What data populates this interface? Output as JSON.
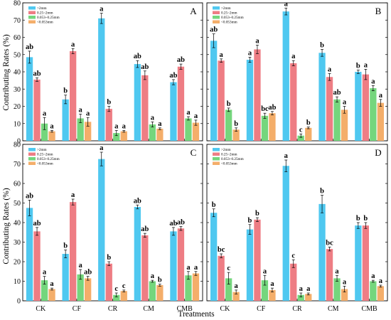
{
  "figure": {
    "ylabel": "Contributing Rates (%)",
    "xlabel": "Treatments",
    "colors": [
      "#4fc8f0",
      "#ee7d84",
      "#75d67d",
      "#f4ae6a"
    ]
  },
  "chart_data": [
    {
      "panel": "A",
      "type": "bar",
      "categories": [
        "CK",
        "CF",
        "CR",
        "CM",
        "CMB"
      ],
      "ylim": [
        0,
        80
      ],
      "yticks": [
        0,
        10,
        20,
        30,
        40,
        50,
        60,
        70,
        80
      ],
      "legend": {
        "position": "top-left"
      },
      "series": [
        {
          "name": ">2mm",
          "values": [
            48.5,
            24,
            71,
            44.5,
            34
          ],
          "errors": [
            3.5,
            2.5,
            3,
            2,
            1.5
          ],
          "labels": [
            "ab",
            "b",
            "a",
            "ab",
            "ab"
          ]
        },
        {
          "name": "0.25~2mm",
          "values": [
            35.5,
            52,
            18.5,
            38,
            43
          ],
          "errors": [
            1,
            1.5,
            1.5,
            2.5,
            1.5
          ],
          "labels": [
            "ab",
            "a",
            "b",
            "ab",
            "ab"
          ]
        },
        {
          "name": "0.053~0.25mm",
          "values": [
            10,
            13,
            4.5,
            9.5,
            13
          ],
          "errors": [
            3.5,
            2.5,
            1.5,
            1.5,
            1
          ],
          "labels": [
            "a",
            "a",
            "a",
            "a",
            "a"
          ]
        },
        {
          "name": "<0.053mm",
          "values": [
            5.5,
            11,
            5.5,
            7,
            10.5
          ],
          "errors": [
            0.5,
            2.5,
            0.5,
            0.5,
            1.5
          ],
          "labels": [
            "a",
            "a",
            "a",
            "a",
            "a"
          ]
        }
      ]
    },
    {
      "panel": "B",
      "type": "bar",
      "categories": [
        "CK",
        "CF",
        "CR",
        "CM",
        "CMB"
      ],
      "ylim": [
        0,
        80
      ],
      "yticks": [
        0,
        10,
        20,
        30,
        40,
        50,
        60,
        70,
        80
      ],
      "legend": {
        "position": "top-left"
      },
      "series": [
        {
          "name": ">2mm",
          "values": [
            58,
            47,
            75,
            51,
            40
          ],
          "errors": [
            4,
            1.5,
            2,
            2,
            1
          ],
          "labels": [
            "ab",
            "a",
            "a",
            "b",
            "b"
          ]
        },
        {
          "name": "0.25~2mm",
          "values": [
            46.5,
            53,
            45,
            37,
            38.5
          ],
          "errors": [
            1,
            2.5,
            1.5,
            2,
            3
          ],
          "labels": [
            "a",
            "a",
            "a",
            "a",
            "a"
          ]
        },
        {
          "name": "0.053~0.25mm",
          "values": [
            18,
            14.5,
            3,
            24,
            30.5
          ],
          "errors": [
            1,
            1.5,
            1,
            1.5,
            1.5
          ],
          "labels": [
            "b",
            "bc",
            "c",
            "ab",
            "a"
          ]
        },
        {
          "name": "<0.053mm",
          "values": [
            6.5,
            16,
            7.5,
            18,
            22
          ],
          "errors": [
            1,
            1,
            0.5,
            2,
            2
          ],
          "labels": [
            "b",
            "ab",
            "b",
            "a",
            "a"
          ]
        }
      ]
    },
    {
      "panel": "C",
      "type": "bar",
      "categories": [
        "CK",
        "CF",
        "CR",
        "CM",
        "CMB"
      ],
      "ylim": [
        0,
        80
      ],
      "yticks": [
        0,
        10,
        20,
        30,
        40,
        50,
        60,
        70,
        80
      ],
      "legend": {
        "position": "top-left"
      },
      "series": [
        {
          "name": ">2mm",
          "values": [
            47.5,
            24,
            72.5,
            48,
            35.5
          ],
          "errors": [
            4,
            2,
            3.5,
            1,
            2
          ],
          "labels": [
            "ab",
            "b",
            "a",
            "ab",
            "ab"
          ]
        },
        {
          "name": "0.25~2mm",
          "values": [
            35.5,
            50.5,
            19,
            33.5,
            37
          ],
          "errors": [
            2,
            1.5,
            1,
            1,
            1
          ],
          "labels": [
            "ab",
            "a",
            "b",
            "ab",
            "ab"
          ]
        },
        {
          "name": "0.053~0.25mm",
          "values": [
            10.5,
            13.5,
            3,
            10,
            13
          ],
          "errors": [
            2,
            2.5,
            1,
            0.5,
            2
          ],
          "labels": [
            "a",
            "a",
            "c",
            "a",
            "a"
          ]
        },
        {
          "name": "<0.053mm",
          "values": [
            6,
            11.5,
            5,
            8,
            14
          ],
          "errors": [
            0.5,
            1,
            0.5,
            0.5,
            1
          ],
          "labels": [
            "a",
            "ab",
            "c",
            "b",
            "a"
          ]
        }
      ]
    },
    {
      "panel": "D",
      "type": "bar",
      "categories": [
        "CK",
        "CF",
        "CR",
        "CM",
        "CMB"
      ],
      "ylim": [
        0,
        80
      ],
      "yticks": [
        0,
        10,
        20,
        30,
        40,
        50,
        60,
        70,
        80
      ],
      "legend": {
        "position": "top-left"
      },
      "series": [
        {
          "name": ">2mm",
          "values": [
            45,
            36.5,
            69,
            49.5,
            38.5
          ],
          "errors": [
            2,
            2.5,
            3,
            4.5,
            1.5
          ],
          "labels": [
            "b",
            "b",
            "a",
            "b",
            "b"
          ]
        },
        {
          "name": "0.25~2mm",
          "values": [
            23,
            41.5,
            19,
            26.5,
            38.5
          ],
          "errors": [
            1,
            1,
            2,
            1,
            1.5
          ],
          "labels": [
            "bc",
            "b",
            "c",
            "bc",
            "b"
          ]
        },
        {
          "name": "0.053~0.25mm",
          "values": [
            11.5,
            10.5,
            3,
            11.5,
            10
          ],
          "errors": [
            3,
            2.5,
            1,
            1.5,
            0.5
          ],
          "labels": [
            "c",
            "a",
            "a",
            "a",
            "a"
          ]
        },
        {
          "name": "<0.053mm",
          "values": [
            4.5,
            5.5,
            3.5,
            6,
            7.5
          ],
          "errors": [
            1,
            1,
            0.5,
            1.5,
            0.5
          ],
          "labels": [
            "a",
            "a",
            "a",
            "a",
            "a"
          ]
        }
      ]
    }
  ]
}
